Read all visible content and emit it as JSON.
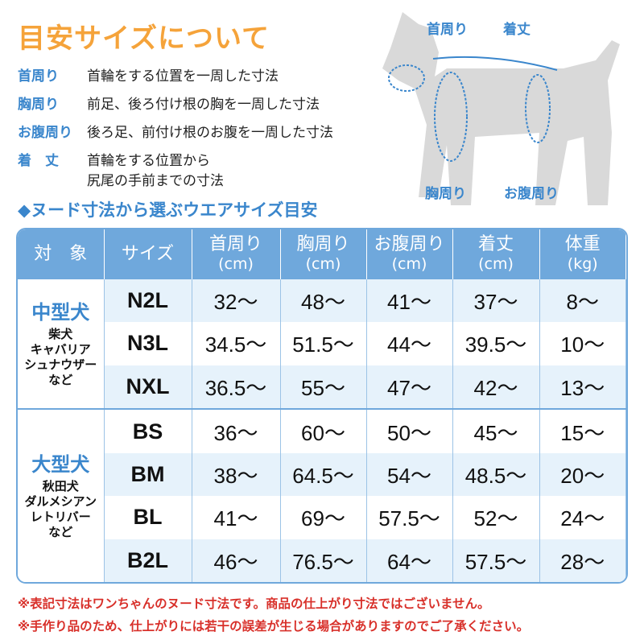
{
  "title": "目安サイズについて",
  "definitions": [
    {
      "term": "首周り",
      "desc": "首輪をする位置を一周した寸法"
    },
    {
      "term": "胸周り",
      "desc": "前足、後ろ付け根の胸を一周した寸法"
    },
    {
      "term": "お腹周り",
      "desc": "後ろ足、前付け根のお腹を一周した寸法"
    },
    {
      "term": "着　丈",
      "desc": "首輪をする位置から",
      "desc2": "尻尾の手前までの寸法"
    }
  ],
  "diagram_labels": {
    "neck": "首周り",
    "length": "着丈",
    "chest": "胸周り",
    "belly": "お腹周り"
  },
  "subtitle": "◆ヌード寸法から選ぶウエアサイズ目安",
  "headers": [
    {
      "main": "対　象",
      "unit": ""
    },
    {
      "main": "サイズ",
      "unit": ""
    },
    {
      "main": "首周り",
      "unit": "(cm)"
    },
    {
      "main": "胸周り",
      "unit": "(cm)"
    },
    {
      "main": "お腹周り",
      "unit": "(cm)"
    },
    {
      "main": "着丈",
      "unit": "(cm)"
    },
    {
      "main": "体重",
      "unit": "(kg)"
    }
  ],
  "groups": [
    {
      "title": "中型犬",
      "breeds": [
        "柴犬",
        "キャバリア",
        "シュナウザー",
        "など"
      ],
      "rows": [
        [
          "N2L",
          "32～",
          "48～",
          "41～",
          "37～",
          "8～"
        ],
        [
          "N3L",
          "34.5～",
          "51.5～",
          "44～",
          "39.5～",
          "10～"
        ],
        [
          "NXL",
          "36.5～",
          "55～",
          "47～",
          "42～",
          "13～"
        ]
      ]
    },
    {
      "title": "大型犬",
      "breeds": [
        "秋田犬",
        "ダルメシアン",
        "レトリバー",
        "など"
      ],
      "rows": [
        [
          "BS",
          "36～",
          "60～",
          "50～",
          "45～",
          "15～"
        ],
        [
          "BM",
          "38～",
          "64.5～",
          "54～",
          "48.5～",
          "20～"
        ],
        [
          "BL",
          "41～",
          "69～",
          "57.5～",
          "52～",
          "24～"
        ],
        [
          "B2L",
          "46～",
          "76.5～",
          "64～",
          "57.5～",
          "28～"
        ]
      ]
    }
  ],
  "notes": [
    "※表記寸法はワンちゃんのヌード寸法です。商品の仕上がり寸法ではございません。",
    "※手作り品のため、仕上がりには若干の誤差が生じる場合がありますのでご了承ください。"
  ],
  "colors": {
    "accent_orange": "#f5a33a",
    "accent_blue": "#3a86cc",
    "header_blue": "#6fa8dc",
    "note_red": "#d8302a",
    "dog_gray": "#d9d9d9"
  }
}
